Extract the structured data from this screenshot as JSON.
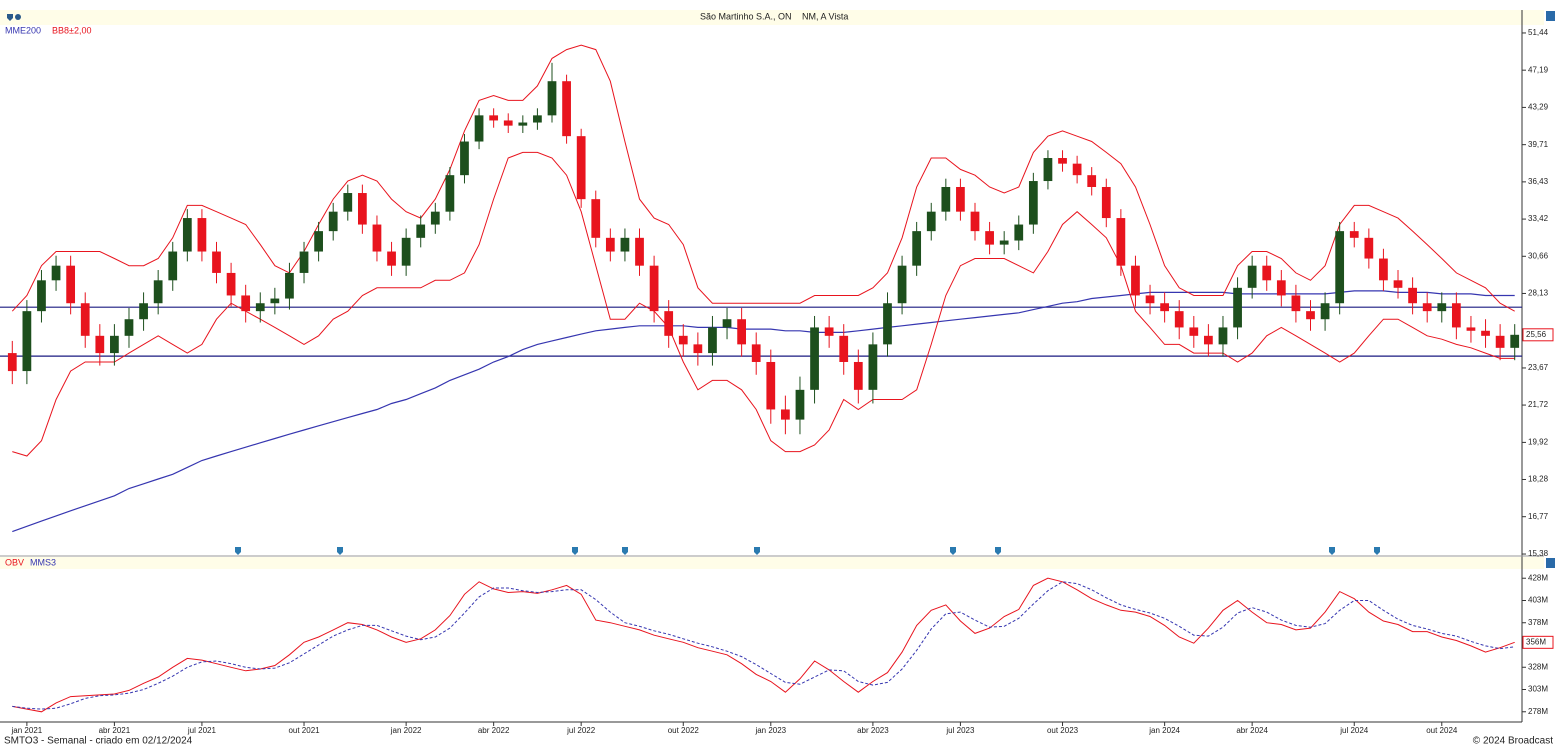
{
  "chart_data": [
    {
      "type": "candlestick",
      "title": "São Martinho S.A., ON",
      "subtitle": "NM, A Vista",
      "categories": [
        null,
        "jan 2021",
        null,
        null,
        null,
        null,
        null,
        "abr 2021",
        null,
        null,
        null,
        null,
        null,
        "jul 2021",
        null,
        null,
        null,
        null,
        null,
        null,
        "out 2021",
        null,
        null,
        null,
        null,
        null,
        null,
        "jan 2022",
        null,
        null,
        null,
        null,
        null,
        "abr 2022",
        null,
        null,
        null,
        null,
        null,
        "jul 2022",
        null,
        null,
        null,
        null,
        null,
        null,
        "out 2022",
        null,
        null,
        null,
        null,
        null,
        "jan 2023",
        null,
        null,
        null,
        null,
        null,
        null,
        "abr 2023",
        null,
        null,
        null,
        null,
        null,
        "jul 2023",
        null,
        null,
        null,
        null,
        null,
        null,
        "out 2023",
        null,
        null,
        null,
        null,
        null,
        null,
        "jan 2024",
        null,
        null,
        null,
        null,
        null,
        "abr 2024",
        null,
        null,
        null,
        null,
        null,
        null,
        "jul 2024",
        null,
        null,
        null,
        null,
        null,
        "out 2024",
        null,
        null,
        null,
        null,
        null
      ],
      "open": [
        24.5,
        23.5,
        27,
        29,
        30,
        27.5,
        25.5,
        24.5,
        25.5,
        26.5,
        27.5,
        29,
        31,
        33.5,
        31,
        29.5,
        28,
        27,
        27.5,
        27.8,
        29.5,
        31,
        32.5,
        34,
        35.5,
        33,
        31,
        30,
        32,
        33,
        34,
        37,
        40,
        42.5,
        42,
        41.5,
        41.8,
        42.5,
        46,
        40.5,
        35,
        32,
        31,
        32,
        30,
        27,
        25.5,
        25,
        24.5,
        26,
        26.5,
        25,
        24,
        21.5,
        21,
        22.5,
        26,
        25.5,
        24,
        22.5,
        25,
        27.5,
        30,
        32.5,
        34,
        36,
        34,
        32.5,
        31.5,
        31.8,
        33,
        36.5,
        38.5,
        38,
        37,
        36,
        33.5,
        30,
        28,
        27.5,
        27,
        26,
        25.5,
        25,
        26,
        28.5,
        30,
        29,
        28,
        27,
        26.5,
        27.5,
        32.5,
        32,
        30.5,
        29,
        28.5,
        27.5,
        27,
        27.5,
        26,
        25.8,
        25.5,
        24.8
      ],
      "high": [
        25.2,
        27.7,
        29.7,
        30.7,
        30.7,
        28.2,
        26.2,
        26.2,
        27.2,
        28.2,
        29.7,
        31.7,
        34.2,
        34.2,
        31.7,
        30.2,
        28.7,
        28.2,
        28.5,
        30.2,
        31.7,
        33.2,
        34.7,
        36.2,
        36.2,
        33.7,
        31.7,
        32.7,
        33.7,
        34.7,
        37.7,
        40.7,
        43.2,
        43.2,
        42.7,
        42.5,
        43.2,
        48,
        46.7,
        41.2,
        35.7,
        32.7,
        32.7,
        32.7,
        30.7,
        27.7,
        26.2,
        25.7,
        26.7,
        27.2,
        27.2,
        25.7,
        24.7,
        22.2,
        23.2,
        26.7,
        26.7,
        26.2,
        24.7,
        25.7,
        28.2,
        30.7,
        33.2,
        34.7,
        36.7,
        36.7,
        34.7,
        33.2,
        32.5,
        33.7,
        37.2,
        39.2,
        39.2,
        38.7,
        37.7,
        36.7,
        34.2,
        30.7,
        28.7,
        28.2,
        27.7,
        26.7,
        26.2,
        26.7,
        29.2,
        30.7,
        30.7,
        29.7,
        28.7,
        27.7,
        28.2,
        33.2,
        33.2,
        32.7,
        31.2,
        29.7,
        29.2,
        28.2,
        28.2,
        28.2,
        26.7,
        26.5,
        26.2,
        26.2
      ],
      "low": [
        22.8,
        22.8,
        26.3,
        28.3,
        26.8,
        24.8,
        23.8,
        23.8,
        24.8,
        25.8,
        26.8,
        28.3,
        30.3,
        30.3,
        28.8,
        27.3,
        26.3,
        26.3,
        26.8,
        27.1,
        28.8,
        30.3,
        31.8,
        33.3,
        32.3,
        30.3,
        29.3,
        29.3,
        31.3,
        32.3,
        33.3,
        36.3,
        39.3,
        41.3,
        40.8,
        40.8,
        41.1,
        41.8,
        39.8,
        34.3,
        31.3,
        30.3,
        30.3,
        29.3,
        26.3,
        24.8,
        24.3,
        23.8,
        23.8,
        25.3,
        24.3,
        23.3,
        20.8,
        20.3,
        20.3,
        21.8,
        24.8,
        23.3,
        21.8,
        21.8,
        24.3,
        26.8,
        29.3,
        31.8,
        33.3,
        33.3,
        31.8,
        30.8,
        30.8,
        31.1,
        32.3,
        35.8,
        37.3,
        36.3,
        35.3,
        32.8,
        29.3,
        27.3,
        26.8,
        26.3,
        25.3,
        24.8,
        24.3,
        24.3,
        25.3,
        27.8,
        28.3,
        27.3,
        26.3,
        25.8,
        25.8,
        26.8,
        31.3,
        29.8,
        28.3,
        27.8,
        26.8,
        26.3,
        26.3,
        25.3,
        25.1,
        24.8,
        24.1,
        24.1
      ],
      "close": [
        23.5,
        27,
        29,
        30,
        27.5,
        25.5,
        24.5,
        25.5,
        26.5,
        27.5,
        29,
        31,
        33.5,
        31,
        29.5,
        28,
        27,
        27.5,
        27.8,
        29.5,
        31,
        32.5,
        34,
        35.5,
        33,
        31,
        30,
        32,
        33,
        34,
        37,
        40,
        42.5,
        42,
        41.5,
        41.8,
        42.5,
        46,
        40.5,
        35,
        32,
        31,
        32,
        30,
        27,
        25.5,
        25,
        24.5,
        26,
        26.5,
        25,
        24,
        21.5,
        21,
        22.5,
        26,
        25.5,
        24,
        22.5,
        25,
        27.5,
        30,
        32.5,
        34,
        36,
        34,
        32.5,
        31.5,
        31.8,
        33,
        36.5,
        38.5,
        38,
        37,
        36,
        33.5,
        30,
        28,
        27.5,
        27,
        26,
        25.5,
        25,
        26,
        28.5,
        30,
        29,
        28,
        27,
        26.5,
        27.5,
        32.5,
        32,
        30.5,
        29,
        28.5,
        27.5,
        27,
        27.5,
        26,
        25.8,
        25.5,
        24.8,
        25.56
      ],
      "up_color": "#1d4f1d",
      "down_color": "#e8141e",
      "series": [
        {
          "name": "MME200",
          "color": "#3636b0",
          "values": [
            16.2,
            16.4,
            16.6,
            16.8,
            17.0,
            17.2,
            17.4,
            17.6,
            17.9,
            18.1,
            18.3,
            18.5,
            18.8,
            19.1,
            19.3,
            19.5,
            19.7,
            19.9,
            20.1,
            20.3,
            20.5,
            20.7,
            20.9,
            21.1,
            21.3,
            21.5,
            21.8,
            22.0,
            22.3,
            22.6,
            23.0,
            23.3,
            23.6,
            24.0,
            24.3,
            24.7,
            25.0,
            25.2,
            25.4,
            25.6,
            25.8,
            25.9,
            26.0,
            26.1,
            26.1,
            26.1,
            26.1,
            26.0,
            26.0,
            26.0,
            25.9,
            25.9,
            25.9,
            25.8,
            25.8,
            25.7,
            25.7,
            25.7,
            25.8,
            25.9,
            26.0,
            26.1,
            26.2,
            26.3,
            26.4,
            26.5,
            26.6,
            26.7,
            26.8,
            26.9,
            27.1,
            27.3,
            27.5,
            27.6,
            27.8,
            27.9,
            28.0,
            28.1,
            28.2,
            28.2,
            28.2,
            28.2,
            28.2,
            28.2,
            28.1,
            28.1,
            28.1,
            28.1,
            28.1,
            28.1,
            28.1,
            28.2,
            28.3,
            28.3,
            28.3,
            28.2,
            28.2,
            28.2,
            28.1,
            28.1,
            28.1,
            28.0,
            28.0,
            28.0
          ]
        }
      ],
      "bands": {
        "name": "BB8±2,00",
        "color": "#e8141e",
        "upper": [
          27,
          28,
          30,
          31,
          31,
          31,
          31,
          30.5,
          30,
          30,
          30.5,
          32,
          34.5,
          34.5,
          34,
          33.5,
          33,
          31.5,
          30,
          29.5,
          31,
          33,
          35,
          36.5,
          37,
          36.5,
          35,
          34,
          33.5,
          35,
          37.5,
          41,
          44,
          44.5,
          44,
          44,
          45.5,
          48.5,
          49.5,
          50,
          49.5,
          46,
          40,
          35,
          33.5,
          33,
          31.5,
          28.5,
          27.5,
          27.5,
          27.5,
          27.5,
          27.5,
          27.5,
          27.5,
          28,
          28,
          28,
          28,
          28.5,
          29.5,
          32,
          36,
          38.5,
          38.5,
          37.5,
          37,
          36,
          35.5,
          36,
          39,
          40.5,
          41,
          40.5,
          40,
          39,
          38,
          36,
          33,
          30,
          28.5,
          28,
          28,
          28,
          30,
          31,
          31,
          30.5,
          29.5,
          29,
          30,
          33,
          34.5,
          34.5,
          34,
          33.5,
          32.5,
          31.5,
          30.5,
          29.5,
          29,
          28.5,
          27.5,
          27
        ],
        "lower": [
          19.5,
          19.3,
          20,
          22,
          23.5,
          24,
          24,
          24,
          24.5,
          25,
          25.5,
          25,
          24.5,
          25,
          26.5,
          27.5,
          27,
          26.5,
          26,
          25.5,
          25,
          25.5,
          26.5,
          27,
          28,
          28.5,
          28.5,
          28.5,
          28.5,
          29,
          29,
          29.5,
          31.5,
          35,
          38.5,
          39,
          39,
          38.5,
          37,
          34,
          30,
          26.5,
          26.5,
          27.5,
          27,
          26,
          24,
          22.5,
          23,
          23,
          22.5,
          21.5,
          20,
          19.5,
          19.5,
          19.8,
          20.5,
          22,
          21.5,
          22,
          22,
          22,
          22.5,
          25,
          28,
          30,
          30.5,
          30.5,
          30.5,
          30,
          29.5,
          31,
          33,
          34,
          33,
          32,
          30,
          27,
          26,
          25,
          25,
          24.5,
          24.5,
          24.5,
          24,
          24.5,
          25.5,
          26,
          25.5,
          25,
          24.5,
          24,
          24.5,
          25.5,
          26.5,
          26.5,
          26,
          25.5,
          25.3,
          25,
          24.8,
          24.5,
          24.2,
          24.2
        ]
      },
      "hlines": [
        27.25,
        24.33
      ],
      "hline_color": "#1a1a80",
      "log_scale": true,
      "ylim": [
        15.31,
        54
      ],
      "yticks": [
        {
          "value": 51.44,
          "label": "51,44"
        },
        {
          "value": 47.19,
          "label": "47,19"
        },
        {
          "value": 43.29,
          "label": "43,29"
        },
        {
          "value": 39.71,
          "label": "39,71"
        },
        {
          "value": 36.43,
          "label": "36,43"
        },
        {
          "value": 33.42,
          "label": "33,42"
        },
        {
          "value": 30.66,
          "label": "30,66"
        },
        {
          "value": 28.13,
          "label": "28,13"
        },
        {
          "value": 23.67,
          "label": "23,67"
        },
        {
          "value": 21.72,
          "label": "21,72"
        },
        {
          "value": 19.92,
          "label": "19,92"
        },
        {
          "value": 18.28,
          "label": "18,28"
        },
        {
          "value": 16.77,
          "label": "16,77"
        },
        {
          "value": 15.38,
          "label": "15,38"
        }
      ],
      "last_value": {
        "value": 25.56,
        "label": "25,56"
      }
    },
    {
      "type": "line",
      "series": [
        {
          "name": "OBV",
          "color": "#e8141e",
          "values": [
            284,
            281,
            278,
            288,
            295,
            296,
            297,
            298,
            302,
            310,
            317,
            328,
            338,
            336,
            332,
            328,
            324,
            326,
            330,
            342,
            356,
            362,
            370,
            378,
            376,
            370,
            362,
            356,
            360,
            370,
            386,
            410,
            424,
            416,
            412,
            413,
            411,
            415,
            420,
            410,
            381,
            378,
            374,
            370,
            364,
            360,
            356,
            350,
            346,
            342,
            332,
            320,
            312,
            300,
            315,
            335,
            325,
            312,
            300,
            312,
            322,
            345,
            375,
            392,
            398,
            380,
            366,
            372,
            385,
            393,
            420,
            428,
            424,
            415,
            405,
            398,
            392,
            390,
            385,
            375,
            362,
            355,
            372,
            392,
            403,
            390,
            378,
            376,
            370,
            372,
            390,
            413,
            405,
            390,
            380,
            376,
            368,
            368,
            362,
            358,
            352,
            345,
            350,
            356
          ]
        },
        {
          "name": "MMS3",
          "color": "#3636b0",
          "dashed": true,
          "values": [
            284,
            282,
            281,
            282,
            287,
            293,
            296,
            297,
            299,
            303,
            310,
            318,
            328,
            334,
            335,
            332,
            328,
            326,
            327,
            333,
            343,
            353,
            363,
            370,
            375,
            375,
            369,
            363,
            359,
            362,
            372,
            389,
            407,
            417,
            417,
            414,
            412,
            413,
            415,
            415,
            404,
            390,
            378,
            374,
            369,
            365,
            360,
            355,
            351,
            346,
            340,
            331,
            321,
            311,
            309,
            317,
            325,
            324,
            312,
            308,
            311,
            326,
            347,
            371,
            388,
            390,
            381,
            373,
            374,
            383,
            399,
            414,
            424,
            422,
            415,
            406,
            398,
            393,
            389,
            383,
            374,
            364,
            363,
            373,
            389,
            395,
            390,
            381,
            375,
            373,
            377,
            392,
            403,
            403,
            392,
            382,
            375,
            371,
            366,
            363,
            357,
            352,
            349,
            351
          ]
        }
      ],
      "ylim": [
        271,
        435
      ],
      "yticks": [
        {
          "value": 428,
          "label": "428M"
        },
        {
          "value": 403,
          "label": "403M"
        },
        {
          "value": 378,
          "label": "378M"
        },
        {
          "value": 328,
          "label": "328M"
        },
        {
          "value": 303,
          "label": "303M"
        },
        {
          "value": 278,
          "label": "278M"
        }
      ],
      "last_value": {
        "value": 356,
        "label": "356M"
      }
    }
  ],
  "footer": {
    "left": "SMTO3 - Semanal - criado em 02/12/2024",
    "right": "© 2024 Broadcast"
  }
}
